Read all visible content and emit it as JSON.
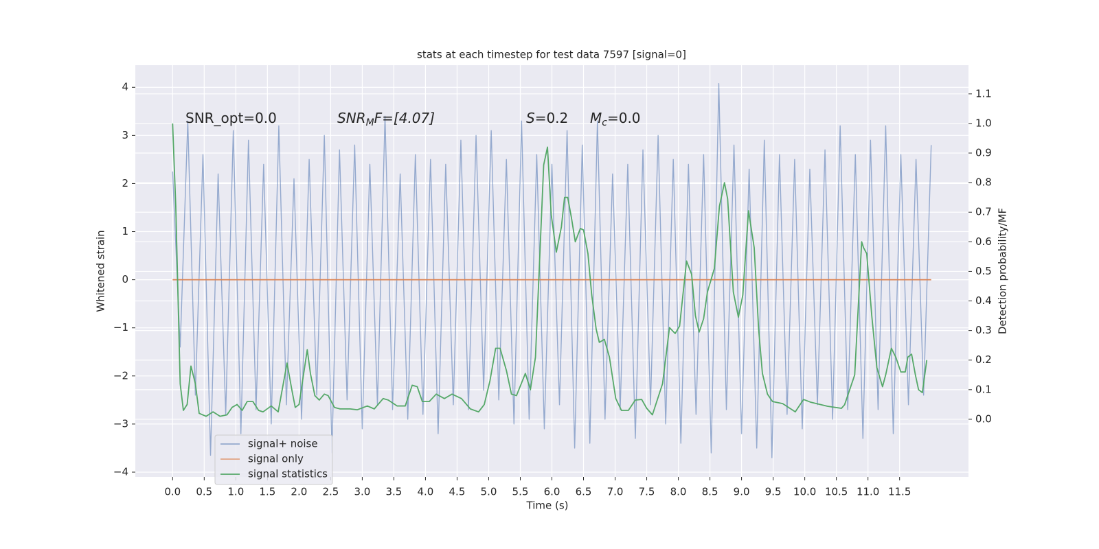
{
  "chart_data": {
    "type": "line",
    "title": "stats at each timestep for test data 7597 [signal=0]",
    "x_label": "Time (s)",
    "y_label": "Whitened strain",
    "y2_label": "Detection probability/MF",
    "xlim": [
      -0.59,
      12.59
    ],
    "ylim": [
      -4.1,
      4.46
    ],
    "y2lim": [
      -0.195,
      1.197
    ],
    "xticks": [
      {
        "value": 0,
        "label": "0.0"
      },
      0.5,
      {
        "value": 1,
        "label": "1.0"
      },
      1.5,
      {
        "value": 2,
        "label": "2.0"
      },
      2.5,
      {
        "value": 3,
        "label": "3.0"
      },
      3.5,
      {
        "value": 4,
        "label": "4.0"
      },
      4.5,
      {
        "value": 5,
        "label": "5.0"
      },
      5.5,
      {
        "value": 6,
        "label": "6.0"
      },
      6.5,
      {
        "value": 7,
        "label": "7.0"
      },
      7.5,
      {
        "value": 8,
        "label": "8.0"
      },
      8.5,
      {
        "value": 9,
        "label": "9.0"
      },
      9.5,
      {
        "value": 10,
        "label": "10.0"
      },
      10.5,
      {
        "value": 11,
        "label": "11.0"
      },
      11.5
    ],
    "yticks": [
      {
        "value": -4,
        "label": "−4"
      },
      {
        "value": -3,
        "label": "−3"
      },
      {
        "value": -2,
        "label": "−2"
      },
      {
        "value": -1,
        "label": "−1"
      },
      0,
      1,
      2,
      3,
      4
    ],
    "y2ticks": [
      {
        "value": 0,
        "label": "0.0"
      },
      0.1,
      0.2,
      0.3,
      0.4,
      0.5,
      0.6,
      0.7,
      0.8,
      0.9,
      {
        "value": 1,
        "label": "1.0"
      },
      1.1
    ],
    "grid": true,
    "legend": "lower left",
    "annotations": [
      {
        "base": "SNR_opt=0.0"
      },
      {
        "base": "SNR",
        "sub": "M",
        "rest": "F=[4.07]"
      },
      {
        "base": "S",
        "rest": "=0.2"
      },
      {
        "base": "M",
        "sub": "c",
        "rest": "=0.0"
      }
    ],
    "series": [
      {
        "name": "signal+ noise",
        "color": "#4c72b0",
        "x": [
          0,
          0.12,
          0.24,
          0.36,
          0.48,
          0.6,
          0.72,
          0.84,
          0.96,
          1.08,
          1.2,
          1.32,
          1.44,
          1.56,
          1.68,
          1.8,
          1.92,
          2.04,
          2.16,
          2.28,
          2.4,
          2.52,
          2.64,
          2.76,
          2.88,
          3.0,
          3.12,
          3.24,
          3.36,
          3.48,
          3.6,
          3.72,
          3.84,
          3.96,
          4.08,
          4.2,
          4.32,
          4.44,
          4.56,
          4.68,
          4.8,
          4.92,
          5.04,
          5.16,
          5.28,
          5.4,
          5.52,
          5.64,
          5.76,
          5.88,
          6.0,
          6.12,
          6.24,
          6.36,
          6.48,
          6.6,
          6.72,
          6.84,
          6.96,
          7.08,
          7.2,
          7.32,
          7.44,
          7.56,
          7.68,
          7.8,
          7.92,
          8.04,
          8.16,
          8.28,
          8.4,
          8.52,
          8.64,
          8.76,
          8.88,
          9.0,
          9.12,
          9.24,
          9.36,
          9.48,
          9.6,
          9.72,
          9.84,
          9.96,
          10.08,
          10.2,
          10.32,
          10.44,
          10.56,
          10.68,
          10.8,
          10.92,
          11.04,
          11.16,
          11.28,
          11.4,
          11.52,
          11.64,
          11.76,
          11.88,
          12.0
        ],
        "values": [
          2.25,
          -1.4,
          3.3,
          -2.4,
          2.6,
          -3.65,
          2.2,
          -2.8,
          3.1,
          -3.2,
          2.9,
          -2.7,
          2.4,
          -3.0,
          3.2,
          -2.6,
          2.1,
          -2.9,
          2.5,
          -2.4,
          3.0,
          -3.6,
          2.7,
          -2.5,
          2.8,
          -3.1,
          2.4,
          -2.6,
          3.4,
          -2.7,
          2.2,
          -2.9,
          2.6,
          -2.8,
          2.5,
          -3.2,
          2.4,
          -2.6,
          2.9,
          -2.7,
          3.0,
          -2.3,
          3.1,
          -2.5,
          2.5,
          -3.0,
          3.3,
          -2.9,
          2.6,
          -3.1,
          2.4,
          -2.6,
          3.1,
          -3.5,
          2.8,
          -3.4,
          3.3,
          -2.9,
          2.2,
          -2.7,
          2.4,
          -3.3,
          2.7,
          -2.6,
          3.0,
          -3.0,
          2.5,
          -3.4,
          2.4,
          -2.8,
          2.6,
          -3.6,
          4.08,
          -2.7,
          2.8,
          -3.2,
          2.3,
          -3.5,
          2.9,
          -3.7,
          2.6,
          -2.8,
          2.5,
          -3.1,
          2.3,
          -2.6,
          2.7,
          -2.9,
          3.2,
          -2.7,
          2.6,
          -3.3,
          2.9,
          -2.7,
          3.2,
          -3.2,
          2.6,
          -2.6,
          2.5,
          -2.4,
          2.8
        ]
      },
      {
        "name": "signal only",
        "color": "#dd8452",
        "x": [
          0,
          12.0
        ],
        "values": [
          0,
          0
        ]
      },
      {
        "name": "signal statistics",
        "color": "#55a868",
        "axis": "y2",
        "x": [
          0,
          0.05,
          0.12,
          0.17,
          0.23,
          0.29,
          0.36,
          0.42,
          0.53,
          0.64,
          0.75,
          0.86,
          0.94,
          1.02,
          1.1,
          1.18,
          1.27,
          1.36,
          1.43,
          1.56,
          1.67,
          1.81,
          1.89,
          1.94,
          2.0,
          2.13,
          2.18,
          2.25,
          2.32,
          2.4,
          2.46,
          2.56,
          2.65,
          2.81,
          2.92,
          3.08,
          3.19,
          3.33,
          3.41,
          3.55,
          3.68,
          3.79,
          3.87,
          3.95,
          4.06,
          4.17,
          4.3,
          4.42,
          4.57,
          4.71,
          4.84,
          4.93,
          5.02,
          5.11,
          5.18,
          5.28,
          5.36,
          5.44,
          5.58,
          5.66,
          5.74,
          5.87,
          5.93,
          5.99,
          6.07,
          6.15,
          6.2,
          6.25,
          6.31,
          6.37,
          6.45,
          6.5,
          6.57,
          6.63,
          6.7,
          6.75,
          6.83,
          6.91,
          7.01,
          7.1,
          7.21,
          7.32,
          7.42,
          7.5,
          7.59,
          7.75,
          7.86,
          7.95,
          8.02,
          8.13,
          8.21,
          8.27,
          8.33,
          8.4,
          8.46,
          8.57,
          8.65,
          8.73,
          8.78,
          8.87,
          8.95,
          9.02,
          9.11,
          9.2,
          9.27,
          9.33,
          9.41,
          9.49,
          9.65,
          9.85,
          9.98,
          10.09,
          10.36,
          10.58,
          10.63,
          10.79,
          10.9,
          10.93,
          10.98,
          11.06,
          11.14,
          11.23,
          11.28,
          11.37,
          11.44,
          11.52,
          11.59,
          11.63,
          11.69,
          11.75,
          11.8,
          11.86,
          11.93
        ],
        "values": [
          1.0,
          0.72,
          0.12,
          0.03,
          0.05,
          0.18,
          0.12,
          0.02,
          0.01,
          0.025,
          0.01,
          0.015,
          0.04,
          0.05,
          0.03,
          0.06,
          0.06,
          0.03,
          0.025,
          0.045,
          0.025,
          0.19,
          0.095,
          0.04,
          0.05,
          0.235,
          0.155,
          0.08,
          0.065,
          0.085,
          0.08,
          0.04,
          0.035,
          0.035,
          0.032,
          0.045,
          0.035,
          0.07,
          0.065,
          0.045,
          0.045,
          0.115,
          0.11,
          0.06,
          0.06,
          0.085,
          0.07,
          0.085,
          0.07,
          0.035,
          0.025,
          0.05,
          0.13,
          0.24,
          0.24,
          0.165,
          0.085,
          0.08,
          0.155,
          0.1,
          0.21,
          0.86,
          0.92,
          0.69,
          0.565,
          0.65,
          0.75,
          0.75,
          0.68,
          0.6,
          0.645,
          0.64,
          0.56,
          0.42,
          0.305,
          0.26,
          0.27,
          0.21,
          0.07,
          0.03,
          0.03,
          0.065,
          0.067,
          0.037,
          0.015,
          0.12,
          0.31,
          0.29,
          0.315,
          0.535,
          0.49,
          0.35,
          0.295,
          0.34,
          0.43,
          0.51,
          0.72,
          0.8,
          0.745,
          0.43,
          0.345,
          0.42,
          0.705,
          0.58,
          0.305,
          0.155,
          0.085,
          0.06,
          0.053,
          0.025,
          0.067,
          0.058,
          0.044,
          0.037,
          0.049,
          0.15,
          0.6,
          0.58,
          0.56,
          0.35,
          0.175,
          0.11,
          0.15,
          0.24,
          0.21,
          0.16,
          0.16,
          0.21,
          0.22,
          0.15,
          0.1,
          0.09,
          0.2
        ]
      }
    ]
  }
}
